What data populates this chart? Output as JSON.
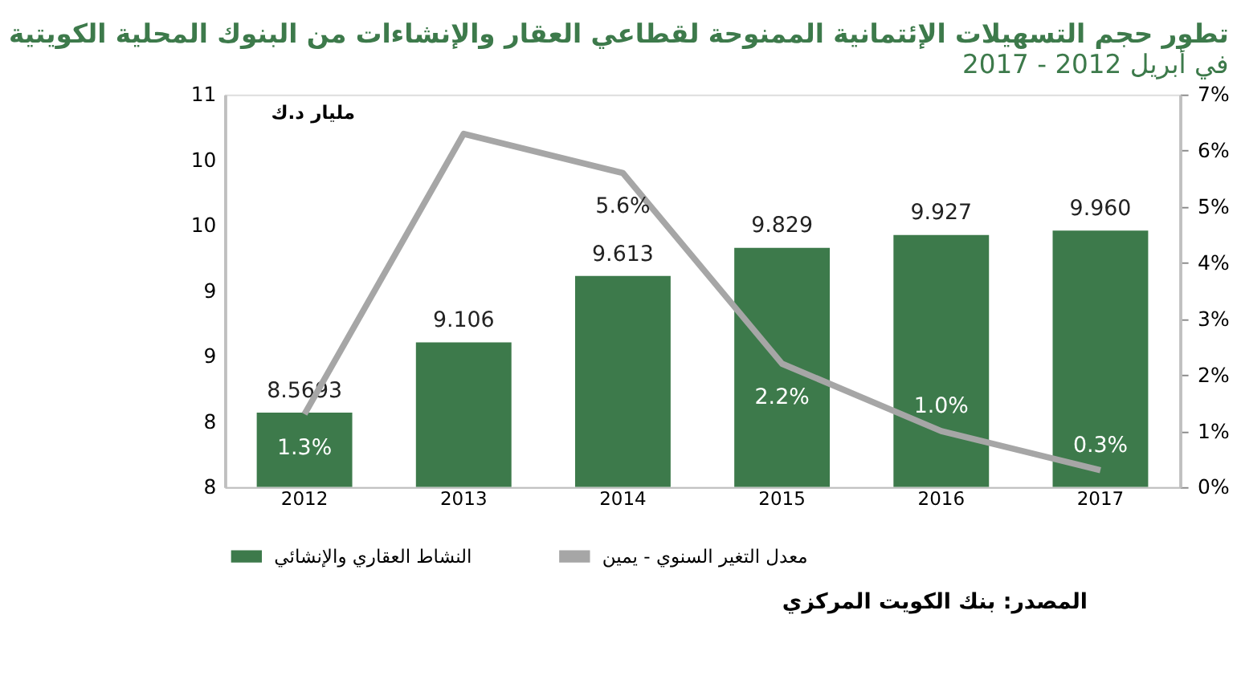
{
  "chart_data": {
    "type": "bar",
    "title": "تطور حجم التسهيلات الإئتمانية الممنوحة لقطاعي العقار والإنشاءات من البنوك المحلية الكويتية",
    "subtitle": "في أبريل 2012 - 2017",
    "ylabel": "مليار د.ك",
    "categories": [
      "2012",
      "2013",
      "2014",
      "2015",
      "2016",
      "2017"
    ],
    "series": [
      {
        "name": "النشاط العقاري والإنشائي",
        "color": "#3d7a4b",
        "values": [
          8.5693,
          9.106,
          9.613,
          9.829,
          9.927,
          9.96
        ],
        "value_labels": [
          "8.5693",
          "9.106",
          "9.613",
          "9.829",
          "9.927",
          "9.960"
        ]
      },
      {
        "name": "معدل التغير السنوي - يمين",
        "type": "line",
        "axis": "y2",
        "color": "#a6a6a6",
        "values": [
          1.3,
          6.3,
          5.6,
          2.2,
          1.0,
          0.3
        ],
        "value_labels": [
          "1.3%",
          null,
          "5.6%",
          "2.2%",
          "1.0%",
          "0.3%"
        ]
      }
    ],
    "ylim": [
      8,
      11
    ],
    "yticks": [
      {
        "value": 8,
        "label": "8"
      },
      {
        "value": 8.5,
        "label": "8"
      },
      {
        "value": 9,
        "label": "9"
      },
      {
        "value": 9.5,
        "label": "9"
      },
      {
        "value": 10,
        "label": "10"
      },
      {
        "value": 10.5,
        "label": "10"
      },
      {
        "value": 11,
        "label": "11"
      }
    ],
    "y2lim": [
      0,
      7
    ],
    "y2ticks": [
      {
        "value": 0,
        "label": "0%"
      },
      {
        "value": 1,
        "label": "1%"
      },
      {
        "value": 2,
        "label": "2%"
      },
      {
        "value": 3,
        "label": "3%"
      },
      {
        "value": 4,
        "label": "4%"
      },
      {
        "value": 5,
        "label": "5%"
      },
      {
        "value": 6,
        "label": "6%"
      },
      {
        "value": 7,
        "label": "7%"
      }
    ],
    "annotations": [
      "المصدر: بنك الكويت المركزي"
    ],
    "grid": false,
    "legend": "bottom",
    "marker": "none",
    "line_style": "solid"
  }
}
